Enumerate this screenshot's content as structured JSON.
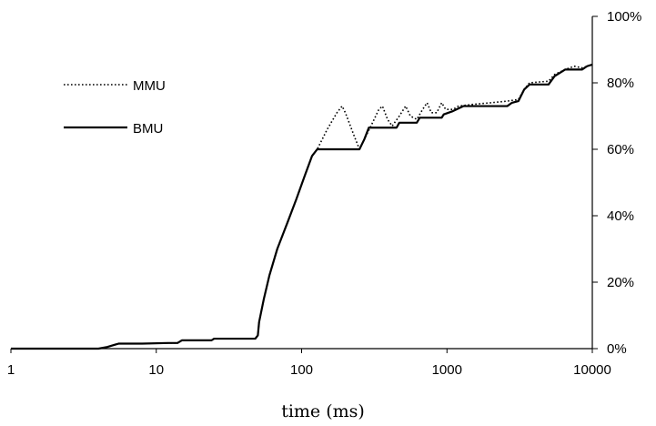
{
  "chart_data": {
    "type": "line",
    "x_scale": "log",
    "xlim": [
      1,
      10000
    ],
    "ylim": [
      0,
      100
    ],
    "xlabel": "time (ms)",
    "ylabel": "",
    "y_axis_side": "right",
    "grid": false,
    "legend_placement": "top-left",
    "x_ticks": [
      1,
      10,
      100,
      1000,
      10000
    ],
    "x_tick_labels": [
      "1",
      "10",
      "100",
      "1000",
      "10000"
    ],
    "y_ticks": [
      0,
      20,
      40,
      60,
      80,
      100
    ],
    "y_tick_labels": [
      "0%",
      "20%",
      "40%",
      "60%",
      "80%",
      "100%"
    ],
    "series": [
      {
        "name": "MMU",
        "style": "dotted",
        "color": "#000000",
        "points": [
          [
            1,
            0
          ],
          [
            4,
            0
          ],
          [
            4.6,
            0.5
          ],
          [
            5.5,
            1.5
          ],
          [
            8,
            1.5
          ],
          [
            12,
            1.7
          ],
          [
            14,
            1.7
          ],
          [
            15,
            2.5
          ],
          [
            24,
            2.5
          ],
          [
            25,
            3
          ],
          [
            48,
            3
          ],
          [
            50,
            4
          ],
          [
            51,
            8
          ],
          [
            55,
            15
          ],
          [
            60,
            22
          ],
          [
            68,
            30
          ],
          [
            80,
            38
          ],
          [
            92,
            45
          ],
          [
            105,
            52
          ],
          [
            118,
            58
          ],
          [
            128,
            60
          ],
          [
            150,
            66
          ],
          [
            175,
            71
          ],
          [
            190,
            73
          ],
          [
            200,
            71
          ],
          [
            230,
            64
          ],
          [
            250,
            60
          ],
          [
            270,
            63
          ],
          [
            300,
            67
          ],
          [
            340,
            72
          ],
          [
            360,
            73
          ],
          [
            390,
            69
          ],
          [
            420,
            67
          ],
          [
            470,
            70
          ],
          [
            520,
            73
          ],
          [
            560,
            70
          ],
          [
            620,
            69
          ],
          [
            680,
            72
          ],
          [
            730,
            74
          ],
          [
            780,
            71
          ],
          [
            850,
            71
          ],
          [
            920,
            74
          ],
          [
            980,
            72
          ],
          [
            1100,
            72
          ],
          [
            1200,
            73
          ],
          [
            1500,
            73.5
          ],
          [
            2000,
            74
          ],
          [
            2600,
            74.5
          ],
          [
            3100,
            75
          ],
          [
            3400,
            78
          ],
          [
            3700,
            80
          ],
          [
            5000,
            80.5
          ],
          [
            5500,
            82.5
          ],
          [
            6500,
            84
          ],
          [
            7500,
            85
          ],
          [
            8500,
            84.5
          ],
          [
            9200,
            85
          ],
          [
            10000,
            85.5
          ]
        ]
      },
      {
        "name": "BMU",
        "style": "solid",
        "color": "#000000",
        "points": [
          [
            1,
            0
          ],
          [
            4,
            0
          ],
          [
            4.6,
            0.5
          ],
          [
            5.5,
            1.5
          ],
          [
            8,
            1.5
          ],
          [
            12,
            1.7
          ],
          [
            14,
            1.7
          ],
          [
            15,
            2.5
          ],
          [
            24,
            2.5
          ],
          [
            25,
            3
          ],
          [
            48,
            3
          ],
          [
            50,
            4
          ],
          [
            51,
            8
          ],
          [
            55,
            15
          ],
          [
            60,
            22
          ],
          [
            68,
            30
          ],
          [
            80,
            38
          ],
          [
            92,
            45
          ],
          [
            105,
            52
          ],
          [
            118,
            58
          ],
          [
            128,
            60
          ],
          [
            250,
            60
          ],
          [
            270,
            63
          ],
          [
            290,
            66.5
          ],
          [
            450,
            66.5
          ],
          [
            470,
            68
          ],
          [
            620,
            68
          ],
          [
            650,
            69.5
          ],
          [
            920,
            69.5
          ],
          [
            950,
            70.5
          ],
          [
            1100,
            71.5
          ],
          [
            1300,
            73
          ],
          [
            2600,
            73
          ],
          [
            2800,
            74
          ],
          [
            3100,
            74.5
          ],
          [
            3400,
            78
          ],
          [
            3700,
            79.5
          ],
          [
            5000,
            79.5
          ],
          [
            5500,
            82
          ],
          [
            6500,
            84
          ],
          [
            7500,
            84
          ],
          [
            8500,
            84
          ],
          [
            9200,
            85
          ],
          [
            10000,
            85.5
          ]
        ]
      }
    ]
  }
}
